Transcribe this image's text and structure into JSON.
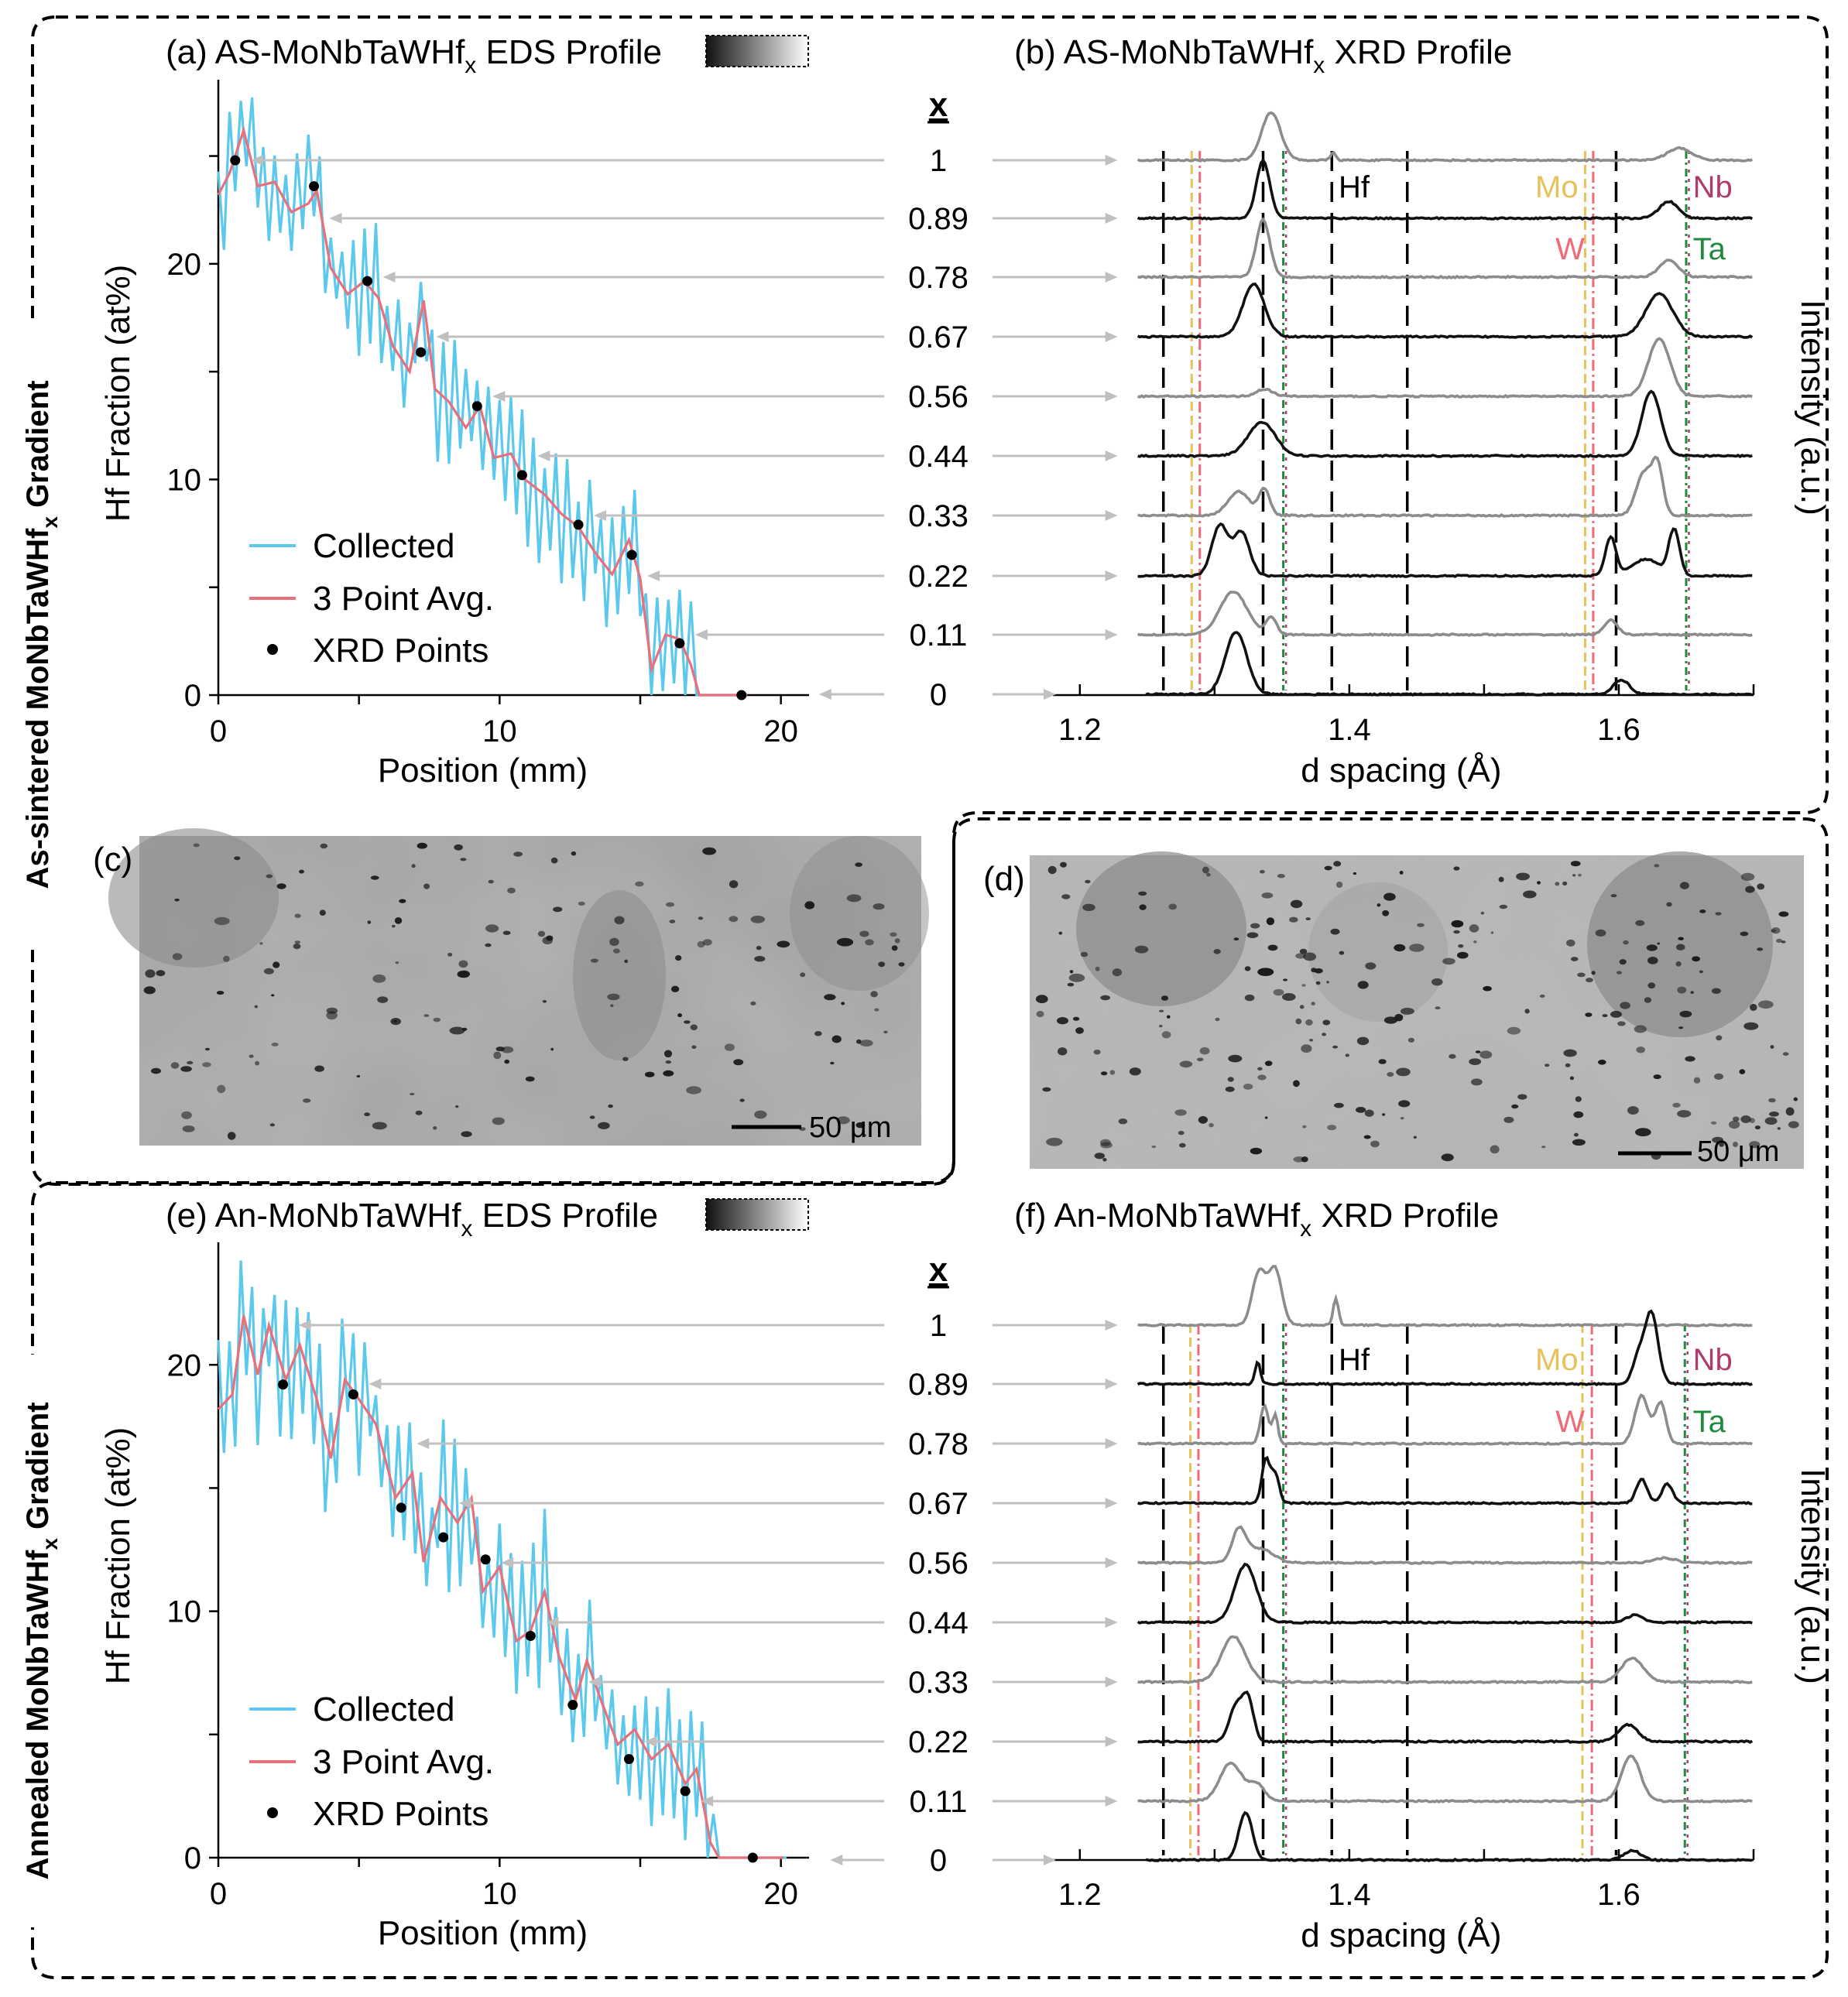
{
  "colors": {
    "collected": "#5bc8ee",
    "avg": "#e8707a",
    "xrd_point": "#000000",
    "black_trace": "#111111",
    "gray_trace": "#8c8c8c",
    "arrow": "#c0c0c0",
    "Mo": "#e7c15a",
    "W": "#f06a78",
    "Nb": "#b23a6a",
    "Ta": "#1e8a3e",
    "sem_bg": "#9a9a9a"
  },
  "side_labels": {
    "top": "As-sintered MoNbTaWHf",
    "top_sub": "x",
    "top_tail": " Gradient",
    "bottom": "Annealed MoNbTaWHf",
    "bottom_sub": "x",
    "bottom_tail": " Gradient"
  },
  "panels": {
    "c": {
      "label": "(c)",
      "scale": "50 μm"
    },
    "d": {
      "label": "(d)",
      "scale": "50 μm"
    }
  },
  "chart_data": [
    {
      "id": "a",
      "type": "line",
      "title_prefix": "(a) AS-MoNbTaWHf",
      "title_sub": "x",
      "title_suffix": " EDS Profile",
      "xlabel": "Position (mm)",
      "ylabel": "Hf Fraction (at%)",
      "xlim": [
        0,
        21
      ],
      "ylim": [
        0,
        28
      ],
      "xticks": [
        "0",
        "10",
        "20"
      ],
      "yticks": [
        "0",
        "10",
        "20"
      ],
      "legend": [
        "Collected",
        "3 Point Avg.",
        "XRD Points"
      ],
      "xrd_points": [
        [
          0.6,
          24.8
        ],
        [
          3.4,
          23.6
        ],
        [
          5.3,
          19.2
        ],
        [
          7.2,
          15.9
        ],
        [
          9.2,
          13.4
        ],
        [
          10.8,
          10.2
        ],
        [
          12.8,
          7.9
        ],
        [
          14.7,
          6.5
        ],
        [
          16.4,
          2.4
        ],
        [
          18.6,
          0
        ]
      ],
      "avg_anchors": [
        [
          0,
          23.2
        ],
        [
          0.4,
          24.2
        ],
        [
          0.9,
          26.2
        ],
        [
          1.4,
          23.6
        ],
        [
          2.0,
          23.8
        ],
        [
          2.6,
          22.4
        ],
        [
          3.2,
          22.8
        ],
        [
          3.5,
          23.4
        ],
        [
          4.0,
          19.8
        ],
        [
          4.6,
          18.6
        ],
        [
          5.2,
          19.2
        ],
        [
          5.7,
          18.4
        ],
        [
          6.2,
          16.2
        ],
        [
          6.8,
          15.0
        ],
        [
          7.3,
          18.3
        ],
        [
          7.7,
          14.2
        ],
        [
          8.2,
          13.6
        ],
        [
          8.8,
          12.4
        ],
        [
          9.3,
          13.4
        ],
        [
          9.8,
          11.0
        ],
        [
          10.4,
          11.2
        ],
        [
          10.9,
          10.0
        ],
        [
          11.6,
          9.3
        ],
        [
          12.2,
          8.4
        ],
        [
          12.8,
          7.8
        ],
        [
          13.4,
          6.6
        ],
        [
          14.0,
          5.6
        ],
        [
          14.6,
          7.2
        ],
        [
          15.0,
          5.4
        ],
        [
          15.4,
          1.2
        ],
        [
          15.9,
          2.8
        ],
        [
          16.4,
          2.6
        ],
        [
          16.8,
          1.4
        ],
        [
          17.1,
          0
        ],
        [
          18.8,
          0
        ]
      ],
      "x_values": [
        "1",
        "0.89",
        "0.78",
        "0.67",
        "0.56",
        "0.44",
        "0.33",
        "0.22",
        "0.11",
        "0"
      ],
      "x_header": "x"
    },
    {
      "id": "b",
      "type": "line",
      "title_prefix": "(b) AS-MoNbTaWHf",
      "title_sub": "x",
      "title_suffix": " XRD Profile",
      "xlabel": "d spacing (Å)",
      "ylabel": "Intensity (a.u.)",
      "xlim": [
        1.18,
        1.7
      ],
      "xticks": [
        "1.2",
        "1.4",
        "1.6"
      ],
      "ref_lines": {
        "Hf": [
          1.262,
          1.336,
          1.387,
          1.443,
          1.598
        ],
        "Mo": [
          1.283,
          1.575
        ],
        "W": [
          1.289,
          1.581
        ],
        "Nb": [
          1.353,
          1.652
        ],
        "Ta": [
          1.351,
          1.65
        ]
      },
      "labels": {
        "Hf": "Hf",
        "Mo": "Mo",
        "W": "W",
        "Nb": "Nb",
        "Ta": "Ta"
      },
      "series": [
        {
          "x": "1",
          "peaks": [
            [
              1.342,
              1.0,
              0.007
            ],
            [
              1.388,
              0.15,
              0.002
            ],
            [
              1.645,
              0.25,
              0.009
            ]
          ]
        },
        {
          "x": "0.89",
          "peaks": [
            [
              1.336,
              1.2,
              0.005
            ],
            [
              1.637,
              0.35,
              0.007
            ]
          ]
        },
        {
          "x": "0.78",
          "peaks": [
            [
              1.336,
              1.2,
              0.005
            ],
            [
              1.637,
              0.35,
              0.007
            ]
          ]
        },
        {
          "x": "0.67",
          "peaks": [
            [
              1.329,
              1.1,
              0.008
            ],
            [
              1.63,
              0.9,
              0.01
            ]
          ]
        },
        {
          "x": "0.56",
          "peaks": [
            [
              1.337,
              0.15,
              0.006
            ],
            [
              1.63,
              1.2,
              0.008
            ]
          ]
        },
        {
          "x": "0.44",
          "peaks": [
            [
              1.335,
              0.7,
              0.01
            ],
            [
              1.624,
              1.35,
              0.007
            ]
          ]
        },
        {
          "x": "0.33",
          "peaks": [
            [
              1.318,
              0.5,
              0.008
            ],
            [
              1.337,
              0.55,
              0.004
            ],
            [
              1.619,
              0.9,
              0.006
            ],
            [
              1.629,
              0.95,
              0.004
            ]
          ]
        },
        {
          "x": "0.22",
          "peaks": [
            [
              1.304,
              1.05,
              0.006
            ],
            [
              1.32,
              0.9,
              0.006
            ],
            [
              1.594,
              0.8,
              0.004
            ],
            [
              1.641,
              0.95,
              0.004
            ],
            [
              1.62,
              0.35,
              0.01
            ]
          ]
        },
        {
          "x": "0.11",
          "peaks": [
            [
              1.314,
              0.9,
              0.01
            ],
            [
              1.342,
              0.35,
              0.004
            ],
            [
              1.594,
              0.3,
              0.005
            ]
          ]
        },
        {
          "x": "0",
          "peaks": [
            [
              1.316,
              1.3,
              0.008
            ],
            [
              1.602,
              0.3,
              0.006
            ]
          ]
        }
      ]
    },
    {
      "id": "e",
      "type": "line",
      "title_prefix": "(e) An-MoNbTaWHf",
      "title_sub": "x",
      "title_suffix": " EDS Profile",
      "xlabel": "Position (mm)",
      "ylabel": "Hf Fraction (at%)",
      "xlim": [
        0,
        21
      ],
      "ylim": [
        0,
        24.5
      ],
      "xticks": [
        "0",
        "10",
        "20"
      ],
      "yticks": [
        "0",
        "10",
        "20"
      ],
      "legend": [
        "Collected",
        "3 Point Avg.",
        "XRD Points"
      ],
      "xrd_points": [
        [
          2.3,
          19.2
        ],
        [
          4.8,
          18.8
        ],
        [
          6.5,
          14.2
        ],
        [
          8.0,
          13.0
        ],
        [
          9.5,
          12.1
        ],
        [
          11.1,
          9.0
        ],
        [
          12.6,
          6.2
        ],
        [
          14.6,
          4.0
        ],
        [
          16.6,
          2.7
        ],
        [
          19.0,
          0
        ]
      ],
      "avg_anchors": [
        [
          0,
          18.2
        ],
        [
          0.5,
          18.8
        ],
        [
          0.9,
          22.0
        ],
        [
          1.4,
          19.6
        ],
        [
          1.8,
          21.6
        ],
        [
          2.4,
          19.4
        ],
        [
          2.9,
          20.8
        ],
        [
          3.5,
          18.6
        ],
        [
          4.0,
          16.2
        ],
        [
          4.5,
          19.4
        ],
        [
          5.0,
          18.6
        ],
        [
          5.6,
          17.6
        ],
        [
          6.3,
          14.6
        ],
        [
          6.9,
          15.6
        ],
        [
          7.3,
          12.0
        ],
        [
          7.9,
          14.6
        ],
        [
          8.5,
          13.6
        ],
        [
          9.0,
          14.6
        ],
        [
          9.4,
          10.8
        ],
        [
          10.0,
          11.8
        ],
        [
          10.6,
          8.8
        ],
        [
          11.1,
          9.2
        ],
        [
          11.6,
          10.8
        ],
        [
          12.1,
          8.2
        ],
        [
          12.7,
          6.4
        ],
        [
          13.1,
          8.0
        ],
        [
          13.6,
          6.4
        ],
        [
          14.2,
          4.6
        ],
        [
          14.8,
          5.2
        ],
        [
          15.4,
          4.0
        ],
        [
          16.0,
          4.6
        ],
        [
          16.6,
          3.0
        ],
        [
          17.0,
          3.6
        ],
        [
          17.5,
          0.6
        ],
        [
          17.8,
          0
        ],
        [
          20.2,
          0
        ]
      ],
      "x_values": [
        "1",
        "0.89",
        "0.78",
        "0.67",
        "0.56",
        "0.44",
        "0.33",
        "0.22",
        "0.11",
        "0"
      ],
      "x_header": "x"
    },
    {
      "id": "f",
      "type": "line",
      "title_prefix": "(f) An-MoNbTaWHf",
      "title_sub": "x",
      "title_suffix": " XRD Profile",
      "xlabel": "d spacing (Å)",
      "ylabel": "Intensity (a.u.)",
      "xlim": [
        1.18,
        1.7
      ],
      "xticks": [
        "1.2",
        "1.4",
        "1.6"
      ],
      "ref_lines": {
        "Hf": [
          1.262,
          1.336,
          1.387,
          1.443,
          1.598
        ],
        "Mo": [
          1.282,
          1.573
        ],
        "W": [
          1.288,
          1.58
        ],
        "Nb": [
          1.353,
          1.651
        ],
        "Ta": [
          1.351,
          1.649
        ]
      },
      "labels": {
        "Hf": "Hf",
        "Mo": "Mo",
        "W": "W",
        "Nb": "Nb",
        "Ta": "Ta"
      },
      "series": [
        {
          "x": "1",
          "peaks": [
            [
              1.333,
              1.1,
              0.005
            ],
            [
              1.345,
              1.15,
              0.005
            ],
            [
              1.39,
              0.55,
              0.002
            ]
          ]
        },
        {
          "x": "0.89",
          "peaks": [
            [
              1.332,
              0.45,
              0.002
            ],
            [
              1.624,
              1.5,
              0.005
            ],
            [
              1.614,
              0.5,
              0.004
            ]
          ]
        },
        {
          "x": "0.78",
          "peaks": [
            [
              1.337,
              0.8,
              0.003
            ],
            [
              1.345,
              0.6,
              0.002
            ],
            [
              1.617,
              1.0,
              0.005
            ],
            [
              1.631,
              0.85,
              0.004
            ]
          ]
        },
        {
          "x": "0.67",
          "peaks": [
            [
              1.338,
              0.9,
              0.003
            ],
            [
              1.345,
              0.6,
              0.003
            ],
            [
              1.617,
              0.5,
              0.004
            ],
            [
              1.636,
              0.4,
              0.004
            ]
          ]
        },
        {
          "x": "0.56",
          "peaks": [
            [
              1.318,
              0.65,
              0.005
            ],
            [
              1.333,
              0.3,
              0.01
            ],
            [
              1.634,
              0.1,
              0.008
            ]
          ]
        },
        {
          "x": "0.44",
          "peaks": [
            [
              1.323,
              1.2,
              0.008
            ],
            [
              1.612,
              0.15,
              0.006
            ]
          ]
        },
        {
          "x": "0.33",
          "peaks": [
            [
              1.314,
              0.95,
              0.009
            ],
            [
              1.61,
              0.5,
              0.008
            ]
          ]
        },
        {
          "x": "0.22",
          "peaks": [
            [
              1.316,
              0.75,
              0.005
            ],
            [
              1.325,
              0.85,
              0.004
            ],
            [
              1.607,
              0.35,
              0.007
            ]
          ]
        },
        {
          "x": "0.11",
          "peaks": [
            [
              1.312,
              0.8,
              0.008
            ],
            [
              1.331,
              0.35,
              0.006
            ],
            [
              1.609,
              0.95,
              0.007
            ]
          ]
        },
        {
          "x": "0",
          "peaks": [
            [
              1.323,
              1.0,
              0.005
            ],
            [
              1.61,
              0.2,
              0.006
            ]
          ]
        }
      ]
    }
  ]
}
